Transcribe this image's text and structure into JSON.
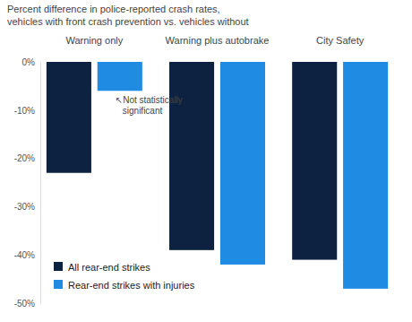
{
  "chart_data": {
    "type": "bar",
    "title": "Percent difference in police-reported crash rates, vehicles with front crash prevention vs. vehicles without",
    "categories": [
      "Warning only",
      "Warning plus autobrake",
      "City Safety"
    ],
    "series": [
      {
        "name": "All rear-end strikes",
        "color": "#0d2240",
        "values": [
          -23,
          -39,
          -41
        ]
      },
      {
        "name": "Rear-end strikes with injuries",
        "color": "#1f8be3",
        "values": [
          -6,
          -42,
          -47
        ]
      }
    ],
    "ylim": [
      -50,
      0
    ],
    "yticks": [
      {
        "value": 0,
        "label": "0%"
      },
      {
        "value": -10,
        "label": "-10%"
      },
      {
        "value": -20,
        "label": "-20%"
      },
      {
        "value": -30,
        "label": "-30%"
      },
      {
        "value": -40,
        "label": "-40%"
      },
      {
        "value": -50,
        "label": "-50%"
      }
    ],
    "legend": "bottom-left",
    "annotations": [
      {
        "text": "↖Not statistically significant"
      }
    ]
  }
}
